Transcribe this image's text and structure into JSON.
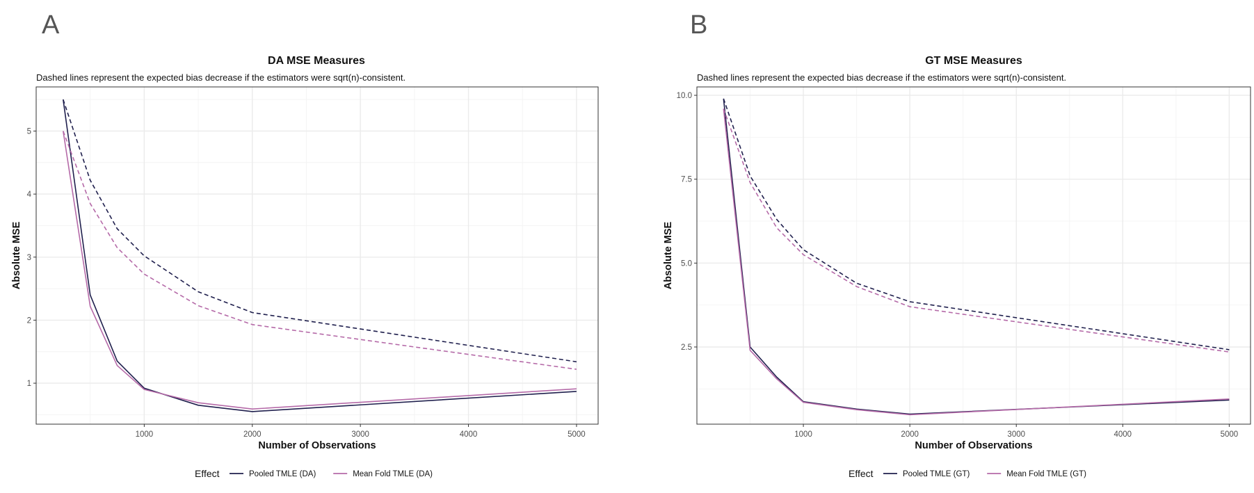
{
  "colors": {
    "pooled": "#1f1f4d",
    "meanfold": "#b56aa8",
    "grid": "#ebebeb",
    "panel_border": "#333333",
    "tick_text": "#4d4d4d",
    "panel_letter": "#555555"
  },
  "chart_data": [
    {
      "panel_label": "A",
      "type": "line",
      "title": "DA MSE Measures",
      "subtitle": "Dashed lines represent the expected bias decrease if the estimators were sqrt(n)-consistent.",
      "xlabel": "Number of Observations",
      "ylabel": "Absolute MSE",
      "xlim": [
        0,
        5200
      ],
      "ylim": [
        0.35,
        5.7
      ],
      "xticks": [
        1000,
        2000,
        3000,
        4000,
        5000
      ],
      "yticks": [
        1,
        2,
        3,
        4,
        5
      ],
      "ytick_labels": [
        "1",
        "2",
        "3",
        "4",
        "5"
      ],
      "grid": true,
      "legend": {
        "position": "bottom",
        "title": "Effect",
        "entries": [
          "Pooled TMLE (DA)",
          "Mean Fold TMLE (DA)"
        ]
      },
      "x": [
        250,
        500,
        750,
        1000,
        1500,
        2000,
        5000
      ],
      "series": [
        {
          "name": "Pooled TMLE (DA)",
          "style": "solid",
          "values": [
            5.5,
            2.4,
            1.35,
            0.92,
            0.65,
            0.55,
            0.87
          ]
        },
        {
          "name": "Mean Fold TMLE (DA)",
          "style": "solid",
          "values": [
            5.0,
            2.22,
            1.28,
            0.9,
            0.69,
            0.59,
            0.91
          ]
        },
        {
          "name": "Pooled TMLE (DA)",
          "style": "dashed",
          "values": [
            5.5,
            4.22,
            3.45,
            3.02,
            2.45,
            2.12,
            1.34
          ]
        },
        {
          "name": "Mean Fold TMLE (DA)",
          "style": "dashed",
          "values": [
            5.0,
            3.85,
            3.15,
            2.73,
            2.23,
            1.93,
            1.22
          ]
        }
      ]
    },
    {
      "panel_label": "B",
      "type": "line",
      "title": "GT MSE Measures",
      "subtitle": "Dashed lines represent the expected bias decrease if the estimators were sqrt(n)-consistent.",
      "xlabel": "Number of Observations",
      "ylabel": "Absolute MSE",
      "xlim": [
        0,
        5200
      ],
      "ylim": [
        0.2,
        10.25
      ],
      "xticks": [
        1000,
        2000,
        3000,
        4000,
        5000
      ],
      "yticks": [
        2.5,
        5.0,
        7.5,
        10.0
      ],
      "ytick_labels": [
        "2.5",
        "5.0",
        "7.5",
        "10.0"
      ],
      "grid": true,
      "legend": {
        "position": "bottom",
        "title": "Effect",
        "entries": [
          "Pooled TMLE (GT)",
          "Mean Fold TMLE (GT)"
        ]
      },
      "x": [
        250,
        500,
        750,
        1000,
        1500,
        2000,
        5000
      ],
      "series": [
        {
          "name": "Pooled TMLE (GT)",
          "style": "solid",
          "values": [
            9.9,
            2.5,
            1.6,
            0.87,
            0.65,
            0.5,
            0.92
          ]
        },
        {
          "name": "Mean Fold TMLE (GT)",
          "style": "solid",
          "values": [
            9.6,
            2.4,
            1.55,
            0.85,
            0.63,
            0.48,
            0.95
          ]
        },
        {
          "name": "Pooled TMLE (GT)",
          "style": "dashed",
          "values": [
            9.9,
            7.6,
            6.3,
            5.4,
            4.4,
            3.85,
            2.42
          ]
        },
        {
          "name": "Mean Fold TMLE (GT)",
          "style": "dashed",
          "values": [
            9.6,
            7.4,
            6.05,
            5.25,
            4.3,
            3.7,
            2.35
          ]
        }
      ]
    }
  ]
}
